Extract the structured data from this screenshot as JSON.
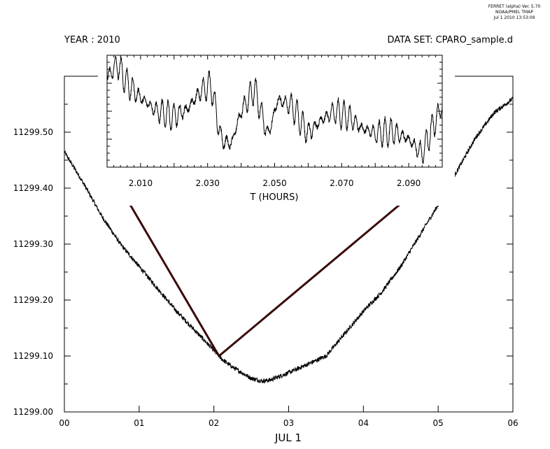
{
  "stamp": {
    "line1": "FERRET (alpha) Ver. 5.70",
    "line2": "NOAA/PMEL TMAP",
    "line3": "Jul  1 2010 13:53:09"
  },
  "header": {
    "left": "YEAR : 2010",
    "right": "DATA SET: CPARO_sample.d"
  },
  "colors": {
    "line": "#000000",
    "arrow": "#3a0a0a",
    "background": "#ffffff"
  },
  "chart_data": [
    {
      "type": "line",
      "xlabel": "JUL   1",
      "xlim": [
        0,
        6
      ],
      "ylim": [
        11299.0,
        11299.6
      ],
      "x_ticks": [
        "00",
        "01",
        "02",
        "03",
        "04",
        "05",
        "06"
      ],
      "y_ticks": [
        "11299.00",
        "11299.10",
        "11299.20",
        "11299.30",
        "11299.40",
        "11299.50"
      ],
      "y_tick_values": [
        11299.0,
        11299.1,
        11299.2,
        11299.3,
        11299.4,
        11299.5
      ],
      "grid": false,
      "series": [
        {
          "x": [
            0,
            0.25,
            0.5,
            0.75,
            1.0,
            1.25,
            1.5,
            1.75,
            2.0,
            2.1,
            2.25,
            2.5,
            2.65,
            2.75,
            3.0,
            3.25,
            3.5,
            3.75,
            4.0,
            4.25,
            4.5,
            4.75,
            5.0,
            5.25,
            5.5,
            5.75,
            6.0
          ],
          "y": [
            11299.465,
            11299.41,
            11299.35,
            11299.3,
            11299.26,
            11299.22,
            11299.18,
            11299.145,
            11299.11,
            11299.095,
            11299.08,
            11299.06,
            11299.055,
            11299.057,
            11299.07,
            11299.085,
            11299.1,
            11299.14,
            11299.18,
            11299.215,
            11299.26,
            11299.315,
            11299.37,
            11299.43,
            11299.49,
            11299.535,
            11299.56
          ]
        }
      ]
    },
    {
      "type": "line",
      "xlabel": "T (HOURS)",
      "xlim": [
        2.0,
        2.1
      ],
      "ylim": [
        0,
        1
      ],
      "x_ticks": [
        "2.010",
        "2.030",
        "2.050",
        "2.070",
        "2.090"
      ],
      "x_tick_values": [
        2.01,
        2.03,
        2.05,
        2.07,
        2.09
      ],
      "grid": false,
      "series": [
        {
          "x": [
            2.0,
            2.003,
            2.006,
            2.01,
            2.015,
            2.02,
            2.024,
            2.028,
            2.031,
            2.034,
            2.037,
            2.04,
            2.044,
            2.048,
            2.051,
            2.055,
            2.06,
            2.064,
            2.068,
            2.072,
            2.076,
            2.08,
            2.085,
            2.09,
            2.094,
            2.097,
            2.1
          ],
          "y": [
            0.8,
            0.92,
            0.75,
            0.62,
            0.5,
            0.45,
            0.52,
            0.68,
            0.74,
            0.25,
            0.2,
            0.5,
            0.7,
            0.28,
            0.6,
            0.55,
            0.3,
            0.42,
            0.5,
            0.45,
            0.35,
            0.3,
            0.32,
            0.25,
            0.12,
            0.35,
            0.55
          ]
        }
      ]
    }
  ]
}
